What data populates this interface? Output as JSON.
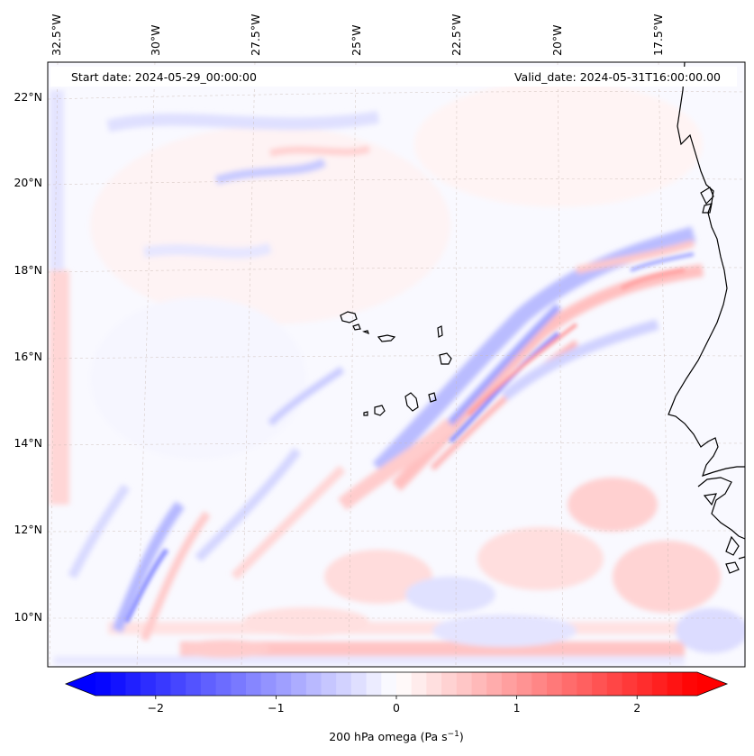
{
  "map": {
    "start_date": "Start date: 2024-05-29_00:00:00",
    "valid_date": "Valid_date: 2024-05-31T16:00:00.00",
    "lon_labels": [
      "32.5°W",
      "30°W",
      "27.5°W",
      "25°W",
      "22.5°W",
      "20°W",
      "17.5°W"
    ],
    "lat_labels": [
      "22°N",
      "20°N",
      "18°N",
      "16°N",
      "14°N",
      "12°N",
      "10°N"
    ]
  },
  "colorbar": {
    "label_prefix": "200 hPa omega (Pa s",
    "label_exp": "−1",
    "label_suffix": ")",
    "ticks": [
      "−2",
      "−1",
      "0",
      "1",
      "2"
    ],
    "tick_values": [
      -2,
      -1,
      0,
      1,
      2
    ],
    "range": [
      -2.5,
      2.5
    ],
    "colormap": "bwr",
    "extend": "both"
  },
  "colors": {
    "negative": "#0000ff",
    "neutral": "#ffffff",
    "positive": "#ff0000",
    "coastline": "#000000",
    "gridline": "#c8b8b0"
  }
}
